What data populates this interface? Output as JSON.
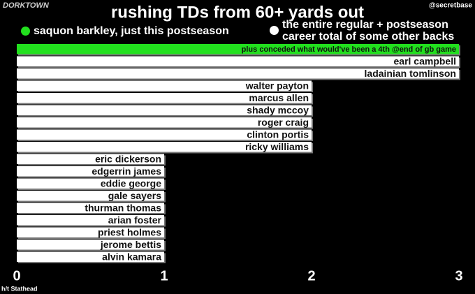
{
  "brand": "DORKTOWN",
  "handle": "@secretbase",
  "credit": "h/t Stathead",
  "chart_data": {
    "type": "barh",
    "title": "rushing TDs from 60+ yards out",
    "annotation": "plus conceded what would've been a 4th @end of gb game",
    "categories": [
      null,
      "earl campbell",
      "ladainian tomlinson",
      "walter payton",
      "marcus allen",
      "shady mccoy",
      "roger craig",
      "clinton portis",
      "ricky williams",
      "eric dickerson",
      "edgerrin james",
      "eddie george",
      "gale sayers",
      "thurman thomas",
      "arian foster",
      "priest holmes",
      "jerome bettis",
      "alvin kamara"
    ],
    "series": [
      {
        "name": "saquon barkley, just this postseason",
        "color": "#22e01e",
        "values": [
          3,
          null,
          null,
          null,
          null,
          null,
          null,
          null,
          null,
          null,
          null,
          null,
          null,
          null,
          null,
          null,
          null,
          null
        ]
      },
      {
        "name": "the entire regular + postseason career total of some other backs",
        "color": "#ffffff",
        "values": [
          null,
          3,
          3,
          2,
          2,
          2,
          2,
          2,
          2,
          1,
          1,
          1,
          1,
          1,
          1,
          1,
          1,
          1
        ]
      }
    ],
    "xlim": [
      0,
      3
    ],
    "xticks": [
      0,
      1,
      2,
      3
    ],
    "grid": false
  }
}
